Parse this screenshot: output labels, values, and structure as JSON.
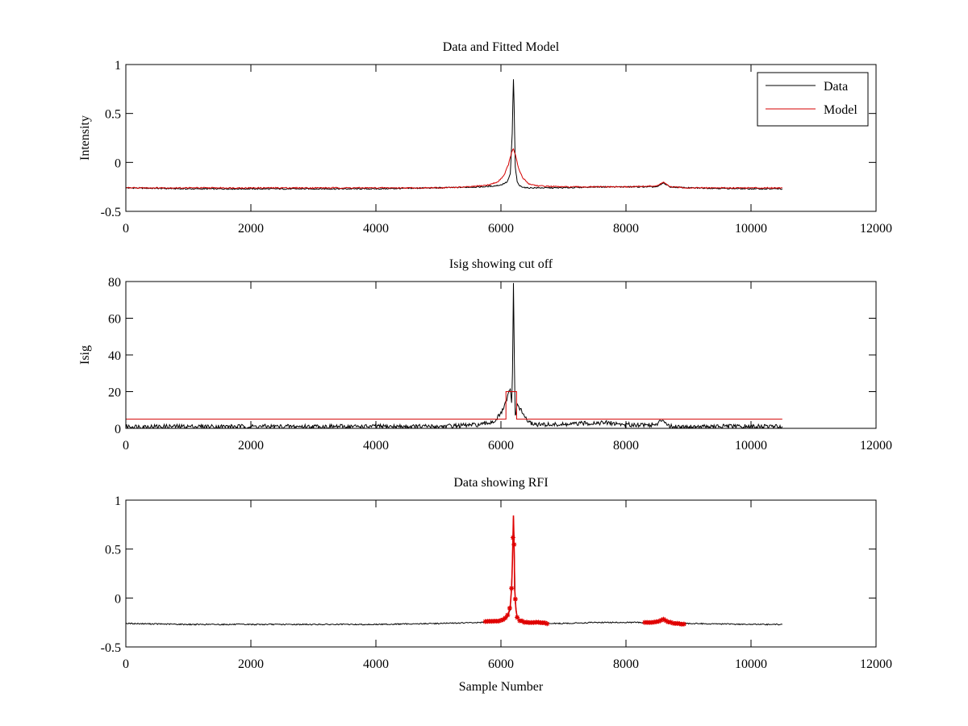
{
  "chart_data": [
    {
      "type": "line",
      "title": "Data and Fitted Model",
      "xlabel": "",
      "ylabel": "Intensity",
      "xlim": [
        0,
        12000
      ],
      "ylim": [
        -0.5,
        1
      ],
      "xticks": [
        "0",
        "2000",
        "4000",
        "6000",
        "8000",
        "10000",
        "12000"
      ],
      "yticks": [
        "-0.5",
        "0",
        "0.5",
        "1"
      ],
      "grid": false,
      "legend": {
        "placement": "top-right",
        "entries": [
          "Data",
          "Model"
        ]
      },
      "series": [
        {
          "name": "Data",
          "color": "#000000",
          "x": [
            0,
            1000,
            2000,
            3000,
            4000,
            5000,
            5700,
            5900,
            6000,
            6100,
            6150,
            6180,
            6200,
            6210,
            6230,
            6260,
            6300,
            6400,
            6500,
            7000,
            7500,
            8000,
            8500,
            8600,
            8700,
            9000,
            10000,
            10500
          ],
          "y": [
            -0.26,
            -0.27,
            -0.27,
            -0.27,
            -0.27,
            -0.26,
            -0.25,
            -0.24,
            -0.23,
            -0.2,
            -0.12,
            0.3,
            0.85,
            0.6,
            -0.05,
            -0.2,
            -0.24,
            -0.26,
            -0.26,
            -0.26,
            -0.25,
            -0.25,
            -0.25,
            -0.21,
            -0.25,
            -0.26,
            -0.27,
            -0.27
          ]
        },
        {
          "name": "Model",
          "color": "#d40000",
          "x": [
            0,
            1000,
            2000,
            3000,
            4000,
            5000,
            5500,
            5800,
            5950,
            6050,
            6120,
            6170,
            6200,
            6230,
            6280,
            6350,
            6450,
            6600,
            7000,
            7500,
            8000,
            8500,
            8600,
            8700,
            9000,
            10000,
            10500
          ],
          "y": [
            -0.26,
            -0.26,
            -0.26,
            -0.26,
            -0.26,
            -0.26,
            -0.25,
            -0.23,
            -0.2,
            -0.13,
            -0.02,
            0.1,
            0.14,
            0.08,
            -0.06,
            -0.16,
            -0.22,
            -0.24,
            -0.25,
            -0.25,
            -0.25,
            -0.24,
            -0.2,
            -0.25,
            -0.26,
            -0.26,
            -0.26
          ]
        }
      ]
    },
    {
      "type": "line",
      "title": "Isig showing cut off",
      "xlabel": "",
      "ylabel": "Isig",
      "xlim": [
        0,
        12000
      ],
      "ylim": [
        0,
        80
      ],
      "xticks": [
        "0",
        "2000",
        "4000",
        "6000",
        "8000",
        "10000",
        "12000"
      ],
      "yticks": [
        "0",
        "20",
        "40",
        "60",
        "80"
      ],
      "grid": false,
      "series": [
        {
          "color": "#000000",
          "x": [
            0,
            1000,
            2000,
            3000,
            4000,
            5000,
            5700,
            5900,
            6000,
            6080,
            6120,
            6150,
            6170,
            6185,
            6200,
            6215,
            6230,
            6260,
            6300,
            6350,
            6450,
            6600,
            7000,
            7500,
            7700,
            8000,
            8500,
            8580,
            8620,
            8700,
            9000,
            10000,
            10500
          ],
          "y": [
            1,
            1,
            1,
            1,
            1,
            1,
            2,
            4,
            8,
            14,
            19,
            21,
            14,
            30,
            78,
            35,
            6,
            13,
            11,
            8,
            3,
            2,
            2,
            3,
            3,
            2,
            2,
            5,
            4,
            1,
            1,
            1,
            1
          ]
        },
        {
          "color": "#d40000",
          "x": [
            0,
            6080,
            6080,
            6250,
            6250,
            10500
          ],
          "y": [
            5,
            5,
            20,
            20,
            5,
            5
          ]
        }
      ]
    },
    {
      "type": "line",
      "title": "Data showing RFI",
      "xlabel": "Sample Number",
      "ylabel": "",
      "xlim": [
        0,
        12000
      ],
      "ylim": [
        -0.5,
        1
      ],
      "xticks": [
        "0",
        "2000",
        "4000",
        "6000",
        "8000",
        "10000",
        "12000"
      ],
      "yticks": [
        "-0.5",
        "0",
        "0.5",
        "1"
      ],
      "grid": false,
      "series": [
        {
          "color": "#000000",
          "x": [
            0,
            1000,
            2000,
            3000,
            4000,
            5000,
            5700,
            5900,
            6000,
            6100,
            6150,
            6180,
            6200,
            6210,
            6230,
            6260,
            6300,
            6400,
            6500,
            7000,
            7500,
            8000,
            8500,
            8600,
            8700,
            9000,
            10000,
            10500
          ],
          "y": [
            -0.26,
            -0.27,
            -0.27,
            -0.27,
            -0.27,
            -0.26,
            -0.25,
            -0.24,
            -0.23,
            -0.2,
            -0.12,
            0.3,
            0.84,
            0.6,
            -0.05,
            -0.2,
            -0.24,
            -0.26,
            -0.26,
            -0.26,
            -0.25,
            -0.25,
            -0.25,
            -0.21,
            -0.25,
            -0.26,
            -0.27,
            -0.27
          ]
        },
        {
          "color": "#e00000",
          "marker": "*",
          "x": [
            5750,
            5900,
            6000,
            6080,
            6120,
            6150,
            6170,
            6185,
            6200,
            6210,
            6220,
            6240,
            6260,
            6300,
            6400,
            6500,
            6600,
            6750
          ],
          "y": [
            -0.24,
            -0.24,
            -0.23,
            -0.2,
            -0.16,
            -0.08,
            0.1,
            0.4,
            0.84,
            0.55,
            0.1,
            -0.12,
            -0.2,
            -0.23,
            -0.25,
            -0.25,
            -0.25,
            -0.26
          ]
        },
        {
          "color": "#e00000",
          "marker": "*",
          "x": [
            8300,
            8400,
            8500,
            8600,
            8700,
            8800,
            8950
          ],
          "y": [
            -0.25,
            -0.25,
            -0.24,
            -0.22,
            -0.25,
            -0.26,
            -0.27
          ]
        }
      ]
    }
  ]
}
